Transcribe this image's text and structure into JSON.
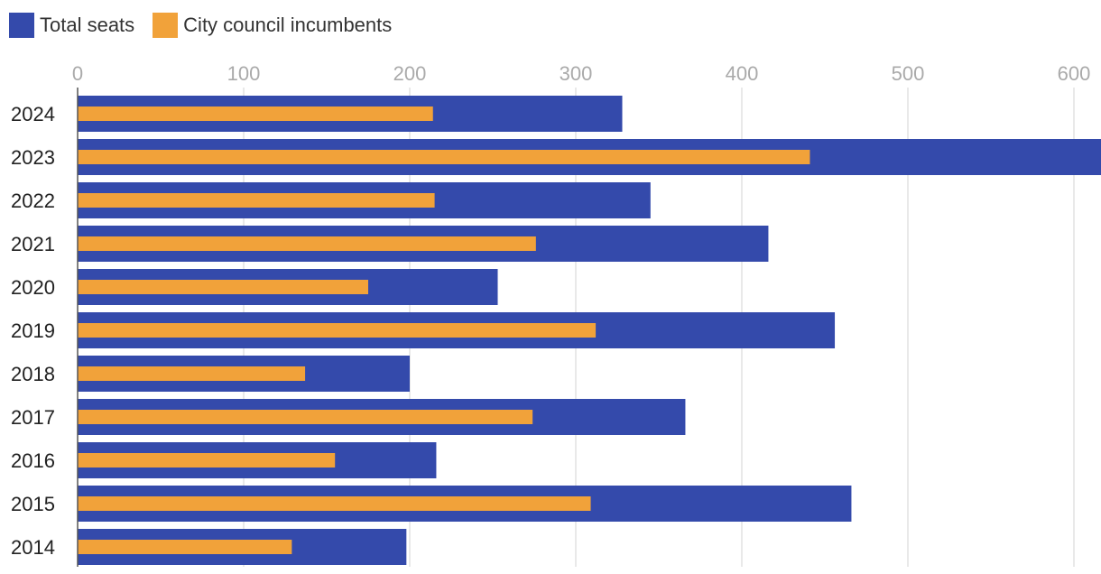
{
  "legend": {
    "position": "top-left",
    "items": [
      {
        "label": "Total seats",
        "color": "#344AAB"
      },
      {
        "label": "City council incumbents",
        "color": "#F1A23A"
      }
    ]
  },
  "chart_data": {
    "type": "bar",
    "orientation": "horizontal",
    "title": "",
    "xlabel": "",
    "ylabel": "",
    "xlim": [
      0,
      620
    ],
    "x_ticks": [
      0,
      100,
      200,
      300,
      400,
      500,
      600
    ],
    "grid": true,
    "categories": [
      "2024",
      "2023",
      "2022",
      "2021",
      "2020",
      "2019",
      "2018",
      "2017",
      "2016",
      "2015",
      "2014"
    ],
    "series": [
      {
        "name": "Total seats",
        "color": "#344AAB",
        "values": [
          328,
          620,
          345,
          416,
          253,
          456,
          200,
          366,
          216,
          466,
          198
        ]
      },
      {
        "name": "City council incumbents",
        "color": "#F1A23A",
        "values": [
          214,
          441,
          215,
          276,
          175,
          312,
          137,
          274,
          155,
          309,
          129
        ]
      }
    ]
  }
}
